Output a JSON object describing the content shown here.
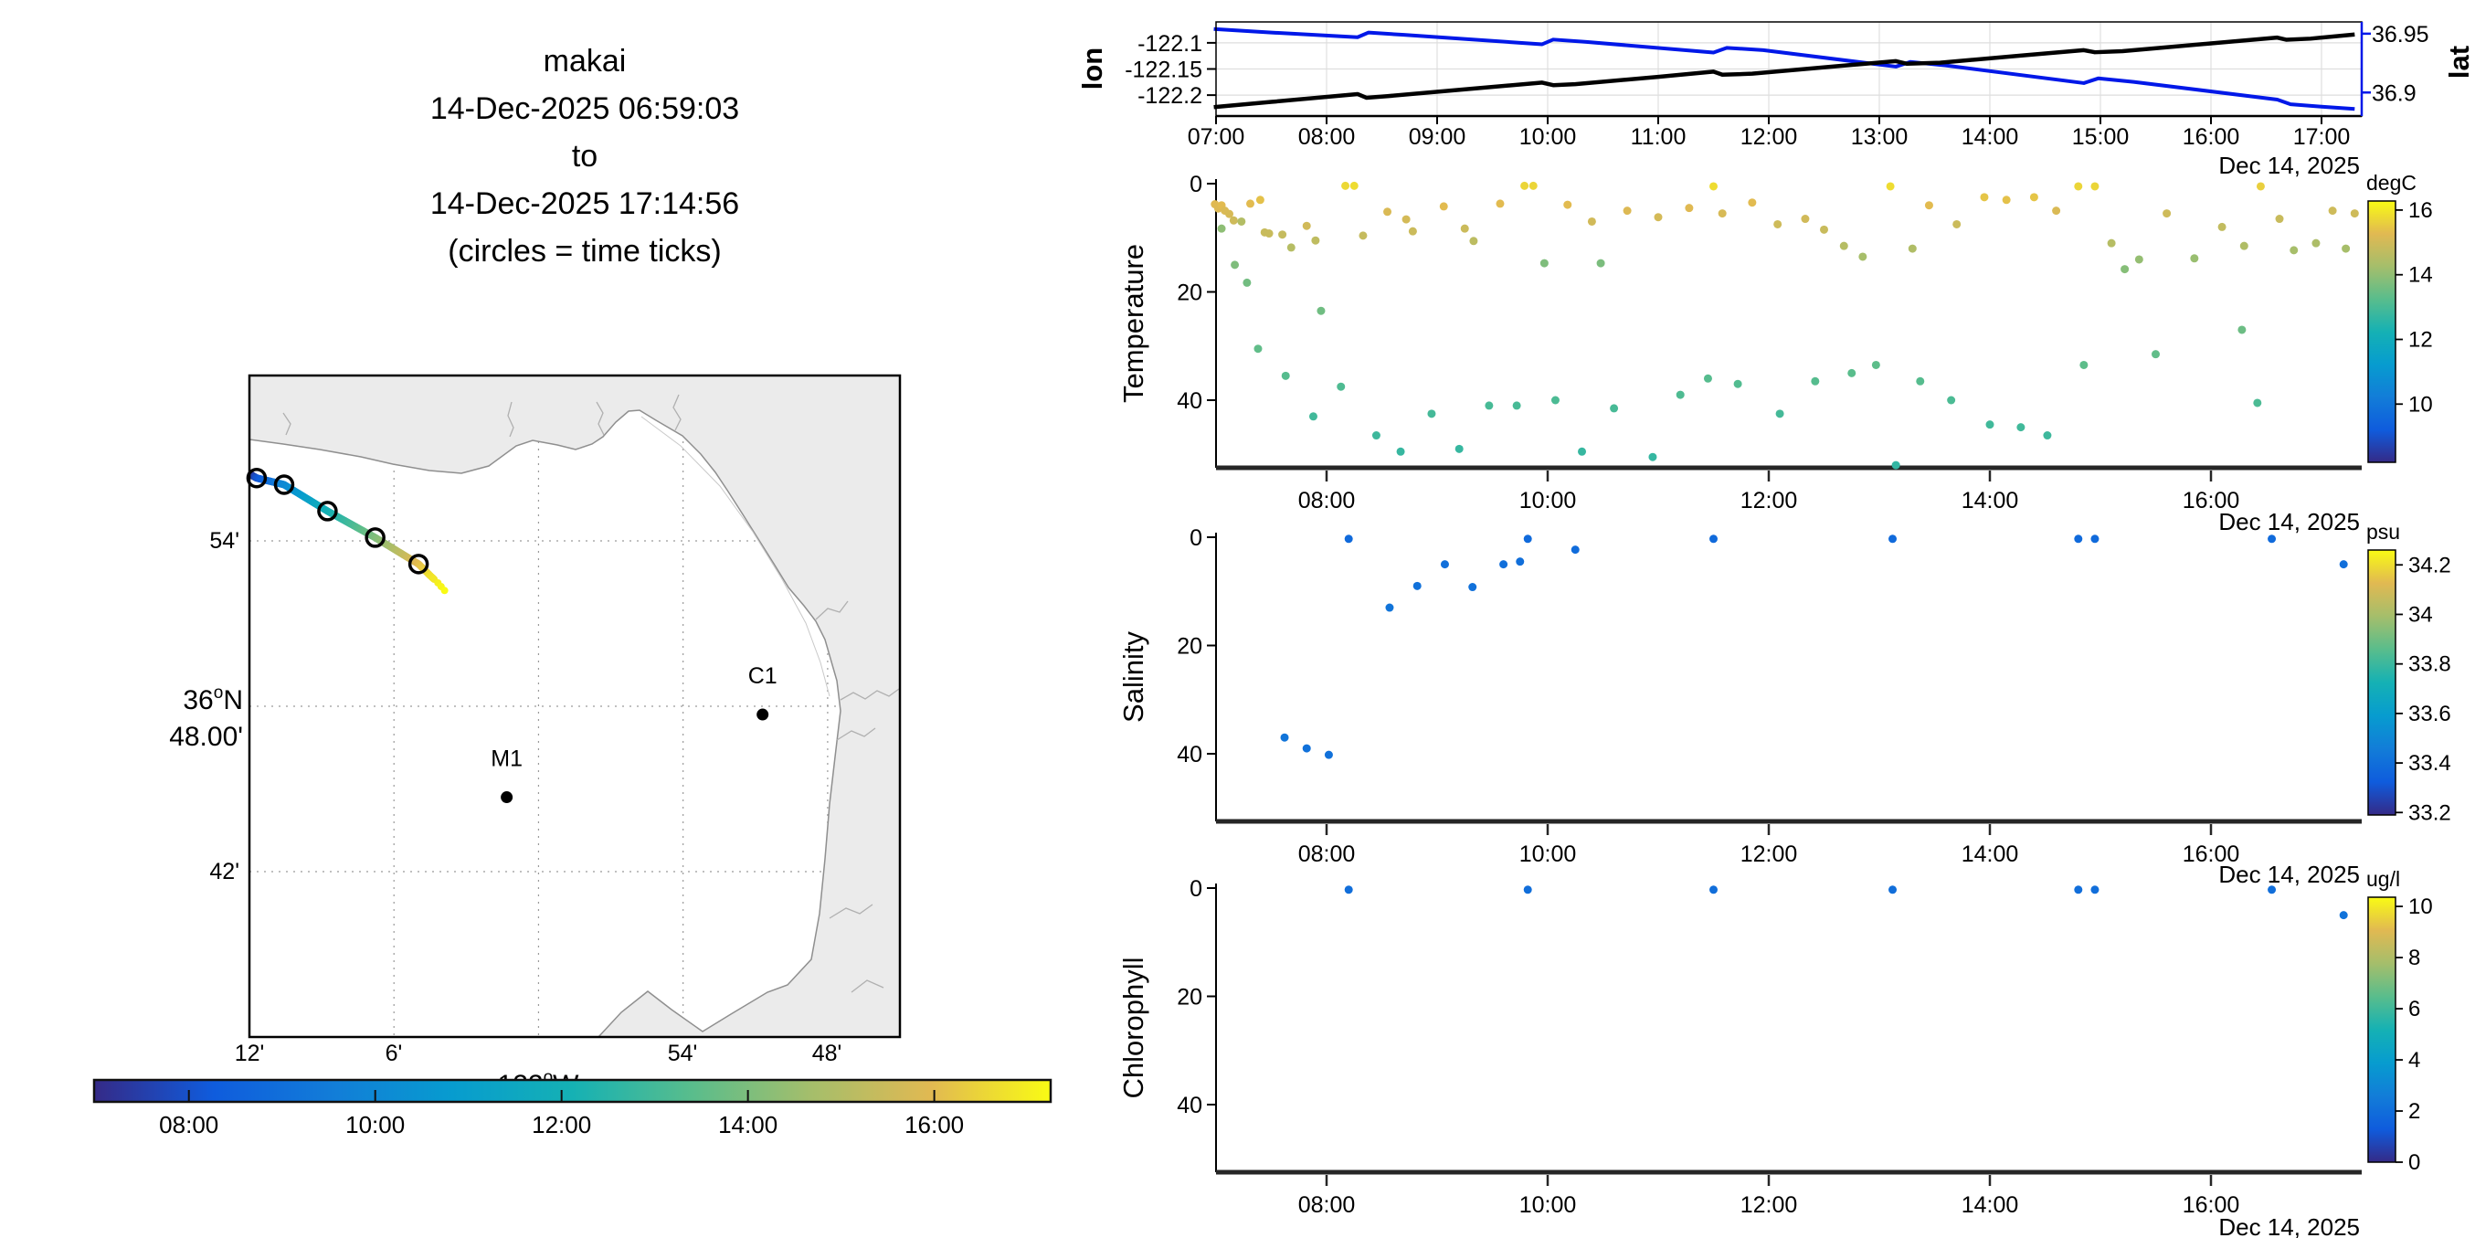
{
  "colors": {
    "background": "#ffffff",
    "land": "#ebebeb",
    "coast": "#8f8f8f",
    "shelf": "#c9c9c9",
    "map_grid": "#9a9a9a",
    "plot_grid": "#dedede",
    "axis": "#000000",
    "thick_axis": "#262626",
    "lon_line": "#000000",
    "lat_line": "#0018e8",
    "parula": [
      "#352A87",
      "#0F5CDD",
      "#127DD8",
      "#079CCF",
      "#15B1B4",
      "#59BD8C",
      "#A5BE6B",
      "#E1B952",
      "#F9FB14"
    ]
  },
  "title": {
    "lines": [
      "makai",
      "14-Dec-2025 06:59:03",
      "to",
      "14-Dec-2025 17:14:56",
      "(circles = time ticks)"
    ]
  },
  "map": {
    "ylabel": {
      "deg": "36",
      "sup": "o",
      "hem": "N",
      "minutes": "48.00'"
    },
    "xlabel": {
      "deg": "122",
      "sup": "o",
      "hem": "W"
    },
    "ytick_labels": [
      "54'",
      "42'"
    ],
    "ytick_lats": [
      36.9,
      36.7
    ],
    "xtick_labels": [
      "12'",
      "6'",
      "54'",
      "48'"
    ],
    "xtick_lons": [
      -122.2,
      -122.1,
      -121.9,
      -121.8
    ],
    "grid_lons": [
      -122.1,
      -122.0,
      -121.9,
      -121.8
    ],
    "grid_lats": [
      36.9,
      36.8,
      36.7
    ],
    "lon_range": [
      -122.2,
      -121.75
    ],
    "lat_range": [
      37.0,
      36.6
    ],
    "stations": [
      {
        "name": "C1",
        "lon": -121.845,
        "lat": 36.795
      },
      {
        "name": "M1",
        "lon": -122.022,
        "lat": 36.745
      }
    ],
    "track": {
      "waypoints": [
        [
          6.983,
          -122.199,
          36.94
        ],
        [
          8.0,
          -122.195,
          36.938
        ],
        [
          10.0,
          -122.176,
          36.934
        ],
        [
          12.0,
          -122.146,
          36.918
        ],
        [
          14.0,
          -122.113,
          36.902
        ],
        [
          16.0,
          -122.083,
          36.886
        ],
        [
          16.7,
          -122.075,
          36.879
        ],
        [
          17.0,
          -122.07,
          36.875
        ],
        [
          17.25,
          -122.065,
          36.87
        ]
      ],
      "time_circles": [
        8,
        10,
        12,
        14,
        16
      ]
    },
    "colorbar": {
      "time_range": [
        6.983,
        17.249
      ],
      "tick_hours": [
        8,
        10,
        12,
        14,
        16
      ],
      "tick_labels": [
        "08:00",
        "10:00",
        "12:00",
        "14:00",
        "16:00"
      ]
    }
  },
  "chart_data": [
    {
      "type": "line",
      "name": "position",
      "date_label": "Dec 14, 2025",
      "ylabel_left": "lon",
      "ylabel_right": "lat",
      "x_tick_hours": [
        7,
        8,
        9,
        10,
        11,
        12,
        13,
        14,
        15,
        16,
        17
      ],
      "x_tick_labels": [
        "07:00",
        "08:00",
        "09:00",
        "10:00",
        "11:00",
        "12:00",
        "13:00",
        "14:00",
        "15:00",
        "16:00",
        "17:00"
      ],
      "ylim_left": [
        -122.24,
        -122.06
      ],
      "yticks_left": [
        -122.1,
        -122.15,
        -122.2
      ],
      "ytick_labels_left": [
        "-122.1",
        "-122.15",
        "-122.2"
      ],
      "ylim_right": [
        36.88,
        36.96
      ],
      "yticks_right": [
        36.95,
        36.9
      ],
      "ytick_labels_right": [
        "36.95",
        "36.9"
      ],
      "series": [
        {
          "name": "lon",
          "points": [
            [
              6.98,
              -122.223
            ],
            [
              7.5,
              -122.213
            ],
            [
              8.28,
              -122.198
            ],
            [
              8.36,
              -122.205
            ],
            [
              8.55,
              -122.202
            ],
            [
              9.3,
              -122.188
            ],
            [
              9.95,
              -122.176
            ],
            [
              10.05,
              -122.181
            ],
            [
              10.25,
              -122.179
            ],
            [
              11.0,
              -122.165
            ],
            [
              11.5,
              -122.155
            ],
            [
              11.58,
              -122.161
            ],
            [
              11.85,
              -122.159
            ],
            [
              12.6,
              -122.145
            ],
            [
              13.15,
              -122.135
            ],
            [
              13.25,
              -122.14
            ],
            [
              13.55,
              -122.138
            ],
            [
              14.3,
              -122.124
            ],
            [
              14.85,
              -122.114
            ],
            [
              14.95,
              -122.118
            ],
            [
              15.2,
              -122.116
            ],
            [
              16.0,
              -122.101
            ],
            [
              16.6,
              -122.09
            ],
            [
              16.68,
              -122.094
            ],
            [
              16.9,
              -122.092
            ],
            [
              17.3,
              -122.084
            ]
          ]
        },
        {
          "name": "lat",
          "points": [
            [
              6.98,
              36.954
            ],
            [
              7.5,
              36.951
            ],
            [
              8.28,
              36.947
            ],
            [
              8.38,
              36.951
            ],
            [
              8.7,
              36.949
            ],
            [
              9.95,
              36.941
            ],
            [
              10.05,
              36.945
            ],
            [
              10.35,
              36.943
            ],
            [
              11.5,
              36.934
            ],
            [
              11.62,
              36.938
            ],
            [
              11.95,
              36.936
            ],
            [
              13.15,
              36.922
            ],
            [
              13.28,
              36.926
            ],
            [
              13.6,
              36.923
            ],
            [
              14.85,
              36.908
            ],
            [
              14.98,
              36.912
            ],
            [
              15.3,
              36.909
            ],
            [
              16.6,
              36.894
            ],
            [
              16.72,
              36.89
            ],
            [
              17.0,
              36.888
            ],
            [
              17.3,
              36.886
            ]
          ]
        }
      ]
    },
    {
      "type": "scatter",
      "ylabel": "Temperature",
      "date_label": "Dec 14, 2025",
      "x_tick_hours": [
        8,
        10,
        12,
        14,
        16
      ],
      "x_tick_labels": [
        "08:00",
        "10:00",
        "12:00",
        "14:00",
        "16:00"
      ],
      "yticks": [
        0,
        20,
        40
      ],
      "ytick_labels": [
        "0",
        "20",
        "40"
      ],
      "colorbar": {
        "title": "degC",
        "tick_values": [
          16,
          14,
          12,
          10
        ],
        "tick_labels": [
          "16",
          "14",
          "12",
          "10"
        ],
        "value_range": [
          8.2,
          16.28
        ]
      },
      "points": [
        [
          6.99,
          3.8,
          15.25
        ],
        [
          7.02,
          4.6,
          15.2
        ],
        [
          7.05,
          4.0,
          15.3
        ],
        [
          7.08,
          5.0,
          15.15
        ],
        [
          7.12,
          5.6,
          15.1
        ],
        [
          7.16,
          6.8,
          14.95
        ],
        [
          7.05,
          8.3,
          13.95
        ],
        [
          7.17,
          15.0,
          13.75
        ],
        [
          7.28,
          18.3,
          13.6
        ],
        [
          7.23,
          7.0,
          14.5
        ],
        [
          7.31,
          3.7,
          15.3
        ],
        [
          7.4,
          3.0,
          15.4
        ],
        [
          7.44,
          9.0,
          14.85
        ],
        [
          7.48,
          9.2,
          14.85
        ],
        [
          7.6,
          9.4,
          14.8
        ],
        [
          7.68,
          11.8,
          14.55
        ],
        [
          7.82,
          7.8,
          15.0
        ],
        [
          7.9,
          10.5,
          14.7
        ],
        [
          8.17,
          0.4,
          15.75
        ],
        [
          8.25,
          0.4,
          15.8
        ],
        [
          8.33,
          9.6,
          14.8
        ],
        [
          8.55,
          5.2,
          15.15
        ],
        [
          8.72,
          6.6,
          15.05
        ],
        [
          8.78,
          8.8,
          14.9
        ],
        [
          9.06,
          4.2,
          15.3
        ],
        [
          9.25,
          8.3,
          14.9
        ],
        [
          9.33,
          10.6,
          14.65
        ],
        [
          9.57,
          3.7,
          15.3
        ],
        [
          9.79,
          0.4,
          15.7
        ],
        [
          9.87,
          0.4,
          15.7
        ],
        [
          9.97,
          14.7,
          13.75
        ],
        [
          10.18,
          3.9,
          15.3
        ],
        [
          10.4,
          7.0,
          15.0
        ],
        [
          10.48,
          14.7,
          13.7
        ],
        [
          10.72,
          5.0,
          15.2
        ],
        [
          11.0,
          6.2,
          15.05
        ],
        [
          11.28,
          4.5,
          15.25
        ],
        [
          11.5,
          0.5,
          15.8
        ],
        [
          11.58,
          5.5,
          15.1
        ],
        [
          11.85,
          3.5,
          15.3
        ],
        [
          12.08,
          7.5,
          14.95
        ],
        [
          12.33,
          6.5,
          15.0
        ],
        [
          12.5,
          8.5,
          14.85
        ],
        [
          12.68,
          11.5,
          14.55
        ],
        [
          12.85,
          13.5,
          14.3
        ],
        [
          13.1,
          0.5,
          15.8
        ],
        [
          13.3,
          12.0,
          14.45
        ],
        [
          13.45,
          4.0,
          15.3
        ],
        [
          13.7,
          7.5,
          14.9
        ],
        [
          13.95,
          2.5,
          15.45
        ],
        [
          14.15,
          3.0,
          15.4
        ],
        [
          14.4,
          2.5,
          15.45
        ],
        [
          14.6,
          5.0,
          15.15
        ],
        [
          14.8,
          0.5,
          15.7
        ],
        [
          14.95,
          0.5,
          15.7
        ],
        [
          15.1,
          11.0,
          14.55
        ],
        [
          15.22,
          15.8,
          13.85
        ],
        [
          15.35,
          14.0,
          14.05
        ],
        [
          15.6,
          5.5,
          14.95
        ],
        [
          15.85,
          13.8,
          14.1
        ],
        [
          16.1,
          8.0,
          14.75
        ],
        [
          16.3,
          11.5,
          14.45
        ],
        [
          16.45,
          0.5,
          15.6
        ],
        [
          16.62,
          6.5,
          14.85
        ],
        [
          16.75,
          12.3,
          14.3
        ],
        [
          16.95,
          11.0,
          14.4
        ],
        [
          17.1,
          5.0,
          14.95
        ],
        [
          17.22,
          12.0,
          14.3
        ],
        [
          17.3,
          5.5,
          14.95
        ],
        [
          7.95,
          23.5,
          13.55
        ],
        [
          7.38,
          30.5,
          13.35
        ],
        [
          7.63,
          35.5,
          13.2
        ],
        [
          7.88,
          43.0,
          12.9
        ],
        [
          8.13,
          37.5,
          13.1
        ],
        [
          8.45,
          46.5,
          12.85
        ],
        [
          8.67,
          49.5,
          12.75
        ],
        [
          8.95,
          42.5,
          12.95
        ],
        [
          9.2,
          49.0,
          12.75
        ],
        [
          9.47,
          41.0,
          13.0
        ],
        [
          9.72,
          41.0,
          13.0
        ],
        [
          10.07,
          40.0,
          13.05
        ],
        [
          10.31,
          49.5,
          12.75
        ],
        [
          10.6,
          41.5,
          13.0
        ],
        [
          10.95,
          50.5,
          12.72
        ],
        [
          11.2,
          39.0,
          13.1
        ],
        [
          11.45,
          36.0,
          13.2
        ],
        [
          11.72,
          37.0,
          13.15
        ],
        [
          12.1,
          42.5,
          12.95
        ],
        [
          12.42,
          36.5,
          13.2
        ],
        [
          12.75,
          35.0,
          13.25
        ],
        [
          12.97,
          33.5,
          13.3
        ],
        [
          13.15,
          52.0,
          12.68
        ],
        [
          13.37,
          36.5,
          13.2
        ],
        [
          13.65,
          40.0,
          13.05
        ],
        [
          14.0,
          44.5,
          12.9
        ],
        [
          14.28,
          45.0,
          12.9
        ],
        [
          14.52,
          46.5,
          12.85
        ],
        [
          14.85,
          33.5,
          13.3
        ],
        [
          15.5,
          31.5,
          13.35
        ],
        [
          16.28,
          27.0,
          13.5
        ],
        [
          16.42,
          40.5,
          13.05
        ]
      ]
    },
    {
      "type": "scatter",
      "ylabel": "Salinity",
      "date_label": "Dec 14, 2025",
      "x_tick_hours": [
        8,
        10,
        12,
        14,
        16
      ],
      "x_tick_labels": [
        "08:00",
        "10:00",
        "12:00",
        "14:00",
        "16:00"
      ],
      "yticks": [
        0,
        20,
        40
      ],
      "ytick_labels": [
        "0",
        "20",
        "40"
      ],
      "colorbar": {
        "title": "psu",
        "tick_values": [
          34.2,
          34.0,
          33.8,
          33.6,
          33.4,
          33.2
        ],
        "tick_labels": [
          "34.2",
          "34",
          "33.8",
          "33.6",
          "33.4",
          "33.2"
        ],
        "value_range": [
          33.19,
          34.26
        ]
      },
      "points": [
        [
          7.62,
          37.0,
          33.42
        ],
        [
          7.82,
          39.0,
          33.41
        ],
        [
          8.02,
          40.2,
          33.41
        ],
        [
          8.2,
          0.3,
          33.38
        ],
        [
          8.57,
          13.0,
          33.42
        ],
        [
          8.82,
          9.0,
          33.41
        ],
        [
          9.07,
          5.0,
          33.4
        ],
        [
          9.32,
          9.2,
          33.41
        ],
        [
          9.6,
          5.0,
          33.4
        ],
        [
          9.75,
          4.5,
          33.4
        ],
        [
          9.82,
          0.3,
          33.38
        ],
        [
          10.25,
          2.3,
          33.39
        ],
        [
          11.5,
          0.3,
          33.38
        ],
        [
          13.12,
          0.3,
          33.38
        ],
        [
          14.8,
          0.3,
          33.38
        ],
        [
          14.95,
          0.3,
          33.38
        ],
        [
          16.55,
          0.3,
          33.38
        ],
        [
          17.2,
          5.0,
          33.4
        ]
      ]
    },
    {
      "type": "scatter",
      "ylabel": "Chlorophyll",
      "date_label": "Dec 14, 2025",
      "x_tick_hours": [
        8,
        10,
        12,
        14,
        16
      ],
      "x_tick_labels": [
        "08:00",
        "10:00",
        "12:00",
        "14:00",
        "16:00"
      ],
      "yticks": [
        0,
        20,
        40
      ],
      "ytick_labels": [
        "0",
        "20",
        "40"
      ],
      "colorbar": {
        "title": "ug/l",
        "tick_values": [
          10,
          8,
          6,
          4,
          2,
          0
        ],
        "tick_labels": [
          "10",
          "8",
          "6",
          "4",
          "2",
          "0"
        ],
        "value_range": [
          0,
          10.36
        ]
      },
      "points": [
        [
          8.2,
          0.3,
          2.0
        ],
        [
          9.82,
          0.3,
          2.0
        ],
        [
          11.5,
          0.3,
          2.0
        ],
        [
          13.12,
          0.3,
          2.0
        ],
        [
          14.8,
          0.3,
          2.0
        ],
        [
          14.95,
          0.3,
          2.0
        ],
        [
          16.55,
          0.3,
          2.0
        ],
        [
          17.2,
          5.0,
          2.2
        ]
      ]
    }
  ]
}
